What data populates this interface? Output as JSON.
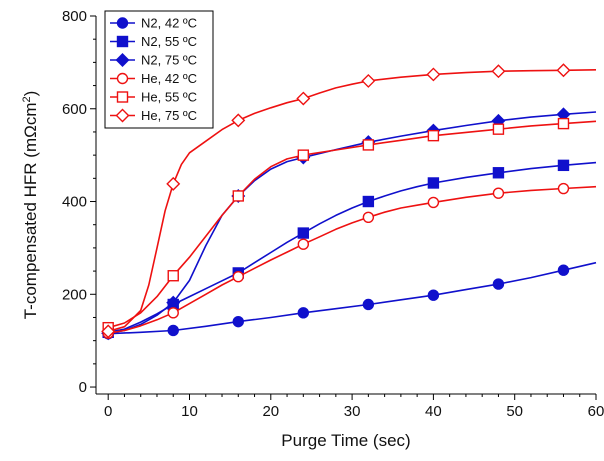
{
  "chart_data": {
    "type": "line",
    "title": "",
    "xlabel": "Purge Time (sec)",
    "ylabel_main": "T-compensated HFR (mΩcm",
    "ylabel_sup": "2",
    "ylabel_close": ")",
    "xlim": [
      -1.5,
      60
    ],
    "ylim": [
      -15,
      800
    ],
    "xticks": [
      0,
      10,
      20,
      30,
      40,
      50,
      60
    ],
    "yticks": [
      0,
      200,
      400,
      600,
      800
    ],
    "legend_position": "top-left",
    "grid": false,
    "series": [
      {
        "name": "N2, 42 ºC",
        "color": "#1010cc",
        "marker": "circle",
        "filled": true,
        "points": [
          [
            0,
            115
          ],
          [
            8,
            122
          ],
          [
            16,
            141
          ],
          [
            24,
            160
          ],
          [
            32,
            178
          ],
          [
            40,
            198
          ],
          [
            48,
            222
          ],
          [
            56,
            252
          ]
        ],
        "curve": [
          [
            0,
            115
          ],
          [
            4,
            118
          ],
          [
            8,
            122
          ],
          [
            12,
            131
          ],
          [
            16,
            141
          ],
          [
            20,
            150
          ],
          [
            24,
            160
          ],
          [
            28,
            169
          ],
          [
            32,
            178
          ],
          [
            36,
            188
          ],
          [
            40,
            198
          ],
          [
            44,
            210
          ],
          [
            48,
            222
          ],
          [
            52,
            236
          ],
          [
            56,
            252
          ],
          [
            60,
            268
          ]
        ]
      },
      {
        "name": "N2, 55 ºC",
        "color": "#1010cc",
        "marker": "square",
        "filled": true,
        "points": [
          [
            0,
            118
          ],
          [
            8,
            178
          ],
          [
            16,
            246
          ],
          [
            24,
            332
          ],
          [
            32,
            400
          ],
          [
            40,
            440
          ],
          [
            48,
            462
          ],
          [
            56,
            478
          ]
        ],
        "curve": [
          [
            0,
            118
          ],
          [
            2,
            125
          ],
          [
            4,
            140
          ],
          [
            6,
            158
          ],
          [
            8,
            178
          ],
          [
            10,
            195
          ],
          [
            12,
            212
          ],
          [
            14,
            229
          ],
          [
            16,
            246
          ],
          [
            18,
            268
          ],
          [
            20,
            290
          ],
          [
            22,
            312
          ],
          [
            24,
            332
          ],
          [
            26,
            352
          ],
          [
            28,
            370
          ],
          [
            30,
            386
          ],
          [
            32,
            400
          ],
          [
            34,
            412
          ],
          [
            36,
            423
          ],
          [
            38,
            432
          ],
          [
            40,
            440
          ],
          [
            44,
            452
          ],
          [
            48,
            462
          ],
          [
            52,
            471
          ],
          [
            56,
            478
          ],
          [
            60,
            484
          ]
        ]
      },
      {
        "name": "N2, 75 ºC",
        "color": "#1010cc",
        "marker": "diamond",
        "filled": true,
        "points": [
          [
            0,
            116
          ],
          [
            8,
            182
          ],
          [
            16,
            412
          ],
          [
            24,
            495
          ],
          [
            32,
            528
          ],
          [
            40,
            553
          ],
          [
            48,
            574
          ],
          [
            56,
            588
          ]
        ],
        "curve": [
          [
            0,
            116
          ],
          [
            2,
            122
          ],
          [
            4,
            135
          ],
          [
            6,
            155
          ],
          [
            8,
            182
          ],
          [
            10,
            230
          ],
          [
            12,
            305
          ],
          [
            14,
            370
          ],
          [
            16,
            412
          ],
          [
            18,
            445
          ],
          [
            20,
            470
          ],
          [
            22,
            486
          ],
          [
            24,
            495
          ],
          [
            28,
            512
          ],
          [
            32,
            528
          ],
          [
            36,
            541
          ],
          [
            40,
            553
          ],
          [
            44,
            564
          ],
          [
            48,
            574
          ],
          [
            52,
            582
          ],
          [
            56,
            588
          ],
          [
            60,
            593
          ]
        ]
      },
      {
        "name": "He, 42 ºC",
        "color": "#ee1111",
        "marker": "circle",
        "filled": false,
        "points": [
          [
            0,
            116
          ],
          [
            8,
            160
          ],
          [
            16,
            238
          ],
          [
            24,
            308
          ],
          [
            32,
            366
          ],
          [
            40,
            398
          ],
          [
            48,
            418
          ],
          [
            56,
            428
          ]
        ],
        "curve": [
          [
            0,
            116
          ],
          [
            2,
            122
          ],
          [
            4,
            132
          ],
          [
            6,
            145
          ],
          [
            8,
            160
          ],
          [
            10,
            180
          ],
          [
            12,
            200
          ],
          [
            14,
            220
          ],
          [
            16,
            238
          ],
          [
            18,
            256
          ],
          [
            20,
            274
          ],
          [
            22,
            291
          ],
          [
            24,
            308
          ],
          [
            26,
            324
          ],
          [
            28,
            340
          ],
          [
            30,
            354
          ],
          [
            32,
            366
          ],
          [
            34,
            377
          ],
          [
            36,
            386
          ],
          [
            38,
            392
          ],
          [
            40,
            398
          ],
          [
            44,
            409
          ],
          [
            48,
            418
          ],
          [
            52,
            424
          ],
          [
            56,
            428
          ],
          [
            60,
            432
          ]
        ]
      },
      {
        "name": "He, 55 ºC",
        "color": "#ee1111",
        "marker": "square",
        "filled": false,
        "points": [
          [
            0,
            128
          ],
          [
            8,
            240
          ],
          [
            16,
            412
          ],
          [
            24,
            500
          ],
          [
            32,
            522
          ],
          [
            40,
            542
          ],
          [
            48,
            556
          ],
          [
            56,
            568
          ]
        ],
        "curve": [
          [
            0,
            128
          ],
          [
            2,
            138
          ],
          [
            4,
            160
          ],
          [
            6,
            195
          ],
          [
            8,
            240
          ],
          [
            10,
            280
          ],
          [
            12,
            325
          ],
          [
            14,
            370
          ],
          [
            16,
            412
          ],
          [
            18,
            448
          ],
          [
            20,
            475
          ],
          [
            22,
            492
          ],
          [
            24,
            500
          ],
          [
            28,
            511
          ],
          [
            32,
            522
          ],
          [
            36,
            532
          ],
          [
            40,
            542
          ],
          [
            44,
            549
          ],
          [
            48,
            556
          ],
          [
            52,
            563
          ],
          [
            56,
            568
          ],
          [
            60,
            573
          ]
        ]
      },
      {
        "name": "He, 75 ºC",
        "color": "#ee1111",
        "marker": "diamond",
        "filled": false,
        "points": [
          [
            0,
            120
          ],
          [
            8,
            438
          ],
          [
            16,
            575
          ],
          [
            24,
            622
          ],
          [
            32,
            660
          ],
          [
            40,
            674
          ],
          [
            48,
            681
          ],
          [
            56,
            683
          ]
        ],
        "curve": [
          [
            0,
            120
          ],
          [
            2,
            130
          ],
          [
            4,
            165
          ],
          [
            5,
            220
          ],
          [
            6,
            300
          ],
          [
            7,
            380
          ],
          [
            8,
            438
          ],
          [
            9,
            480
          ],
          [
            10,
            505
          ],
          [
            12,
            530
          ],
          [
            14,
            555
          ],
          [
            16,
            575
          ],
          [
            18,
            590
          ],
          [
            20,
            602
          ],
          [
            22,
            613
          ],
          [
            24,
            622
          ],
          [
            26,
            634
          ],
          [
            28,
            645
          ],
          [
            30,
            653
          ],
          [
            32,
            660
          ],
          [
            36,
            668
          ],
          [
            40,
            674
          ],
          [
            44,
            678
          ],
          [
            48,
            681
          ],
          [
            52,
            682
          ],
          [
            56,
            683
          ],
          [
            60,
            684
          ]
        ]
      }
    ]
  }
}
